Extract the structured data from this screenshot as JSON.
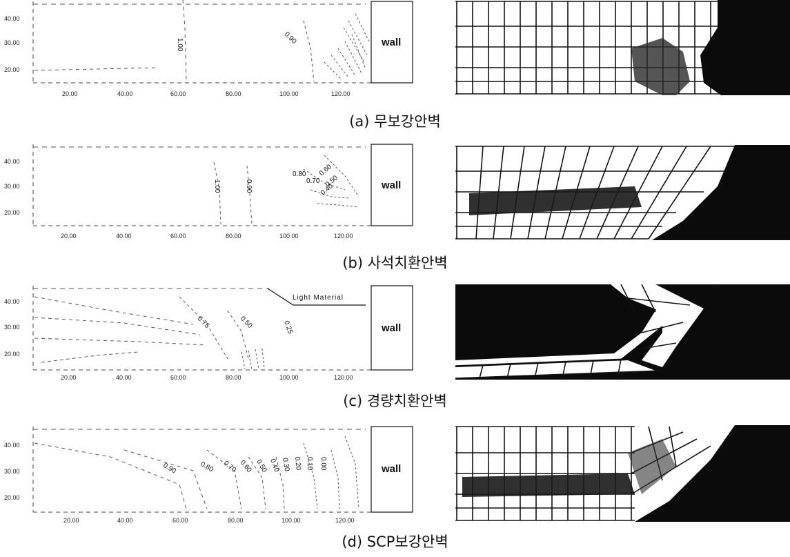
{
  "figure": {
    "panels": [
      {
        "id": "a",
        "caption": "(a) 무보강안벽",
        "wall_label": "wall",
        "material_label": "",
        "y_ticks": [
          "40.00",
          "30.00",
          "20.00"
        ],
        "x_ticks": [
          "20.00",
          "40.00",
          "60.00",
          "80.00",
          "100.00",
          "120.00"
        ],
        "contour_labels": [
          "1.00",
          "0.90"
        ]
      },
      {
        "id": "b",
        "caption": "(b) 사석치환안벽",
        "wall_label": "wall",
        "material_label": "",
        "y_ticks": [
          "40.00",
          "30.00",
          "20.00"
        ],
        "x_ticks": [
          "20.00",
          "40.00",
          "60.00",
          "80.00",
          "100.00",
          "120.00"
        ],
        "contour_labels": [
          "1.00",
          "0.90",
          "0.80",
          "0.70",
          "0.60",
          "0.50",
          "0.40"
        ]
      },
      {
        "id": "c",
        "caption": "(c) 경량치환안벽",
        "wall_label": "wall",
        "material_label": "Light Material",
        "y_ticks": [
          "40.00",
          "30.00",
          "20.00"
        ],
        "x_ticks": [
          "20.00",
          "40.00",
          "60.00",
          "80.00",
          "100.00",
          "120.00"
        ],
        "contour_labels": [
          "0.75",
          "0.50",
          "0.25"
        ]
      },
      {
        "id": "d",
        "caption": "(d) SCP보강안벽",
        "wall_label": "wall",
        "material_label": "",
        "y_ticks": [
          "40.00",
          "30.00",
          "20.00"
        ],
        "x_ticks": [
          "20.00",
          "40.00",
          "60.00",
          "80.00",
          "100.00",
          "120.00"
        ],
        "contour_labels": [
          "0.90",
          "0.80",
          "0.70",
          "0.60",
          "0.50",
          "0.40",
          "0.30",
          "0.20",
          "0.10",
          "0.00"
        ]
      }
    ]
  }
}
